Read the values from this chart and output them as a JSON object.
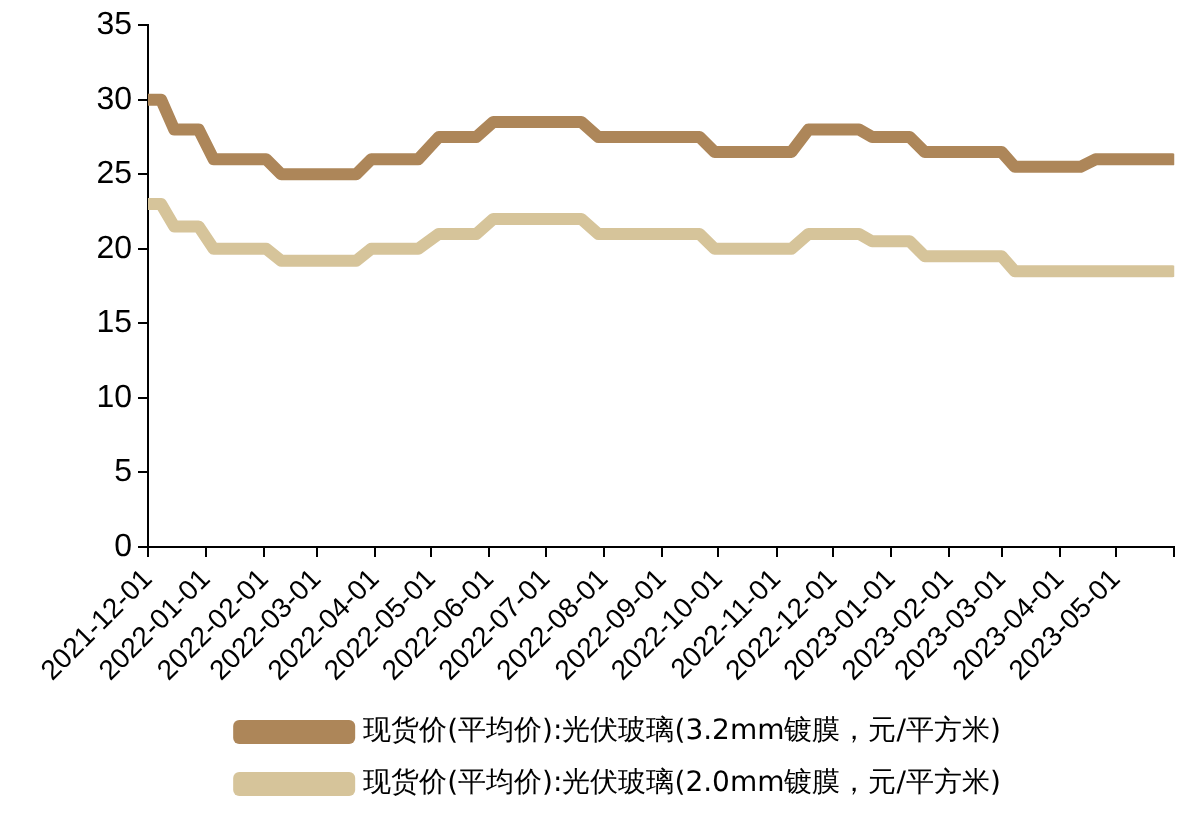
{
  "chart_data": {
    "type": "line",
    "legend": "bottom",
    "grid": false,
    "marker": "none",
    "line_style": "solid",
    "x": [
      "2021-12-01",
      "2021-12-08",
      "2021-12-15",
      "2021-12-28",
      "2022-01-05",
      "2022-02-02",
      "2022-02-10",
      "2022-03-22",
      "2022-03-30",
      "2022-04-24",
      "2022-05-05",
      "2022-05-25",
      "2022-06-03",
      "2022-07-20",
      "2022-07-29",
      "2022-09-21",
      "2022-09-29",
      "2022-11-09",
      "2022-11-18",
      "2022-12-15",
      "2022-12-22",
      "2023-01-11",
      "2023-01-19",
      "2023-03-01",
      "2023-03-08",
      "2023-04-12",
      "2023-04-20",
      "2023-05-31"
    ],
    "series": [
      {
        "name": "现货价(平均价):光伏玻璃(3.2mm镀膜，元/平方米)",
        "color": "#ad8659",
        "values": [
          30,
          30,
          28,
          28,
          26,
          26,
          25,
          25,
          26,
          26,
          27.5,
          27.5,
          28.5,
          28.5,
          27.5,
          27.5,
          26.5,
          26.5,
          28,
          28,
          27.5,
          27.5,
          26.5,
          26.5,
          25.5,
          25.5,
          26,
          26
        ]
      },
      {
        "name": "现货价(平均价):光伏玻璃(2.0mm镀膜，元/平方米)",
        "color": "#d6c49a",
        "values": [
          23,
          23,
          21.5,
          21.5,
          20,
          20,
          19.2,
          19.2,
          20,
          20,
          21,
          21,
          22,
          22,
          21,
          21,
          20,
          20,
          21,
          21,
          20.5,
          20.5,
          19.5,
          19.5,
          18.5,
          18.5,
          18.5,
          18.5
        ]
      }
    ],
    "xlim": [
      "2021-12-01",
      "2023-06-01"
    ],
    "xticks": [
      "2021-12-01",
      "2022-01-01",
      "2022-02-01",
      "2022-03-01",
      "2022-04-01",
      "2022-05-01",
      "2022-06-01",
      "2022-07-01",
      "2022-08-01",
      "2022-09-01",
      "2022-10-01",
      "2022-11-01",
      "2022-12-01",
      "2023-01-01",
      "2023-02-01",
      "2023-03-01",
      "2023-04-01",
      "2023-05-01",
      {
        "value": "2023-06-01",
        "label": null
      }
    ],
    "ylim": [
      0,
      35
    ],
    "yticks": [
      0,
      5,
      10,
      15,
      20,
      25,
      30,
      35
    ]
  }
}
